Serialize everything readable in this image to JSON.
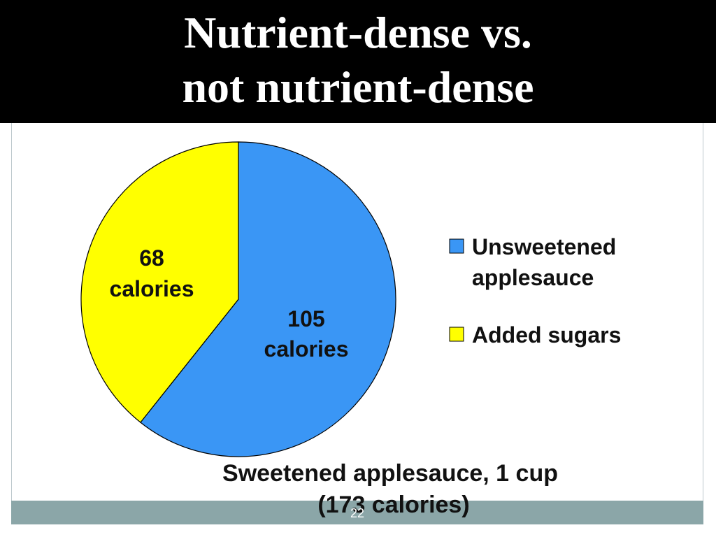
{
  "slide": {
    "title_line1": "Nutrient-dense vs.",
    "title_line2": "not nutrient-dense",
    "page_number": "22"
  },
  "chart_data": {
    "type": "pie",
    "title": "",
    "caption_line1": "Sweetened applesauce, 1 cup",
    "caption_line2": "(173 calories)",
    "slices": [
      {
        "name": "Unsweetened applesauce",
        "value": 105,
        "label_line1": "105",
        "label_line2": "calories",
        "color": "#3a96f5"
      },
      {
        "name": "Added sugars",
        "value": 68,
        "label_line1": "68",
        "label_line2": "calories",
        "color": "#ffff00"
      }
    ],
    "legend": {
      "placement": "right",
      "entries": [
        {
          "line1": "Unsweetened",
          "line2": "applesauce",
          "color": "#3a96f5"
        },
        {
          "line1": "Added sugars",
          "line2": "",
          "color": "#ffff00"
        }
      ]
    }
  }
}
